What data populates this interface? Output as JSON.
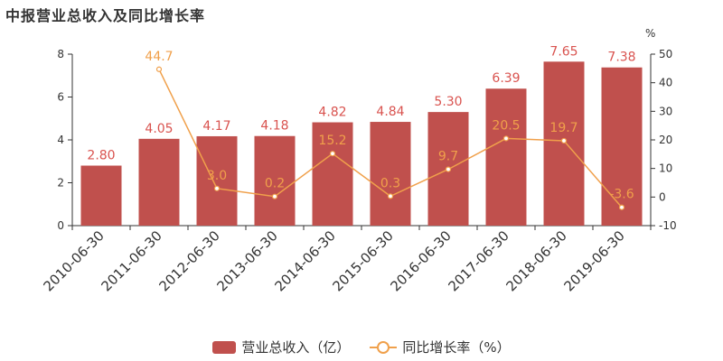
{
  "page": {
    "title": "中报营业总收入及同比增长率"
  },
  "legend": {
    "revenue": "营业总收入（亿）",
    "growth": "同比增长率（%）"
  },
  "chart_data": {
    "type": "bar",
    "categories": [
      "2010-06-30",
      "2011-06-30",
      "2012-06-30",
      "2013-06-30",
      "2014-06-30",
      "2015-06-30",
      "2016-06-30",
      "2017-06-30",
      "2018-06-30",
      "2019-06-30"
    ],
    "series": [
      {
        "name": "营业总收入（亿）",
        "type": "bar",
        "axis": "left",
        "values": [
          2.8,
          4.05,
          4.17,
          4.18,
          4.82,
          4.84,
          5.3,
          6.39,
          7.65,
          7.38
        ],
        "labels": [
          "2.80",
          "4.05",
          "4.17",
          "4.18",
          "4.82",
          "4.84",
          "5.30",
          "6.39",
          "7.65",
          "7.38"
        ],
        "color": "#c0504d"
      },
      {
        "name": "同比增长率（%）",
        "type": "line",
        "axis": "right",
        "values": [
          null,
          44.7,
          3.0,
          0.2,
          15.2,
          0.3,
          9.7,
          20.5,
          19.7,
          -3.6
        ],
        "labels": [
          "",
          "44.7",
          "3.0",
          "0.2",
          "15.2",
          "0.3",
          "9.7",
          "20.5",
          "19.7",
          "-3.6"
        ],
        "color": "#f0a04b"
      }
    ],
    "y_left": {
      "ylim": [
        0,
        8
      ],
      "ticks": [
        "0",
        "2",
        "4",
        "6",
        "8"
      ]
    },
    "y_right": {
      "unit": "%",
      "ylim": [
        -10,
        50
      ],
      "ticks": [
        "-10",
        "0",
        "10",
        "20",
        "30",
        "40",
        "50"
      ]
    },
    "colors": {
      "label_text": "#d9534f",
      "axis": "#333333"
    }
  }
}
